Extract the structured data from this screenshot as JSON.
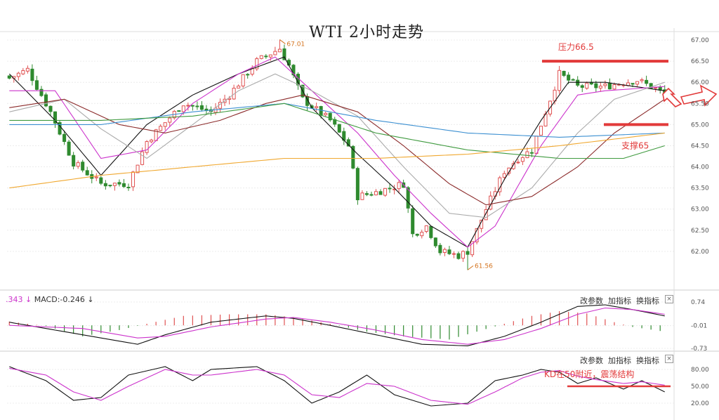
{
  "title": "WTI 2小时走势",
  "macd_header": {
    "left": ".343",
    "label": "MACD:-0.246"
  },
  "buttons": [
    "改参数",
    "加指标",
    "换指标"
  ],
  "close_glyph": "×",
  "main_y_ticks": [
    "67.00",
    "66.50",
    "66.00",
    "65.50",
    "65.00",
    "64.50",
    "64.00",
    "63.50",
    "63.00",
    "62.50",
    "62.00"
  ],
  "macd_y_ticks": [
    "0.74",
    "-0.01",
    "-0.73"
  ],
  "kd_y_ticks": [
    "80.00",
    "50.00",
    "20.00"
  ],
  "annotations": {
    "resistance": "压力66.5",
    "support": "支撑65",
    "kd_note": "KD在50附近，震荡结构",
    "high_price": "67.01",
    "low_price": "61.56"
  },
  "colors": {
    "up": "#e05252",
    "down": "#2f8a2f",
    "annotation": "#e23a3a",
    "k_line": "#111111",
    "d_line": "#cc33cc"
  },
  "chart_data": [
    {
      "type": "candlestick",
      "title": "WTI 2小时走势",
      "ylim": [
        61.3,
        67.2
      ],
      "yticks": [
        67.0,
        66.5,
        66.0,
        65.5,
        65.0,
        64.5,
        64.0,
        63.5,
        63.0,
        62.5,
        62.0
      ],
      "levels": {
        "resistance": 66.5,
        "support": 65.0
      },
      "extremes": {
        "high": 67.01,
        "low": 61.56
      },
      "close_anchors": [
        [
          0,
          66.1
        ],
        [
          4,
          66.3
        ],
        [
          9,
          65.3
        ],
        [
          14,
          64.1
        ],
        [
          20,
          63.6
        ],
        [
          26,
          63.6
        ],
        [
          30,
          64.6
        ],
        [
          38,
          65.5
        ],
        [
          44,
          65.3
        ],
        [
          48,
          65.7
        ],
        [
          54,
          66.5
        ],
        [
          59,
          66.8
        ],
        [
          61,
          66.4
        ],
        [
          64,
          65.6
        ],
        [
          70,
          65.1
        ],
        [
          74,
          64.5
        ],
        [
          76,
          63.3
        ],
        [
          80,
          63.4
        ],
        [
          86,
          63.6
        ],
        [
          88,
          62.4
        ],
        [
          91,
          62.6
        ],
        [
          94,
          62.0
        ],
        [
          98,
          61.9
        ],
        [
          100,
          62.0
        ],
        [
          104,
          63.0
        ],
        [
          108,
          63.9
        ],
        [
          111,
          64.2
        ],
        [
          114,
          64.4
        ],
        [
          116,
          65.0
        ],
        [
          120,
          66.2
        ],
        [
          124,
          65.9
        ],
        [
          130,
          65.9
        ],
        [
          134,
          66.0
        ],
        [
          137,
          66.05
        ],
        [
          141,
          65.85
        ],
        [
          143,
          65.7
        ]
      ],
      "moving_average_anchors": [
        {
          "color": "#111111",
          "points": [
            [
              0,
              66.2
            ],
            [
              10,
              65.1
            ],
            [
              20,
              63.8
            ],
            [
              30,
              65.0
            ],
            [
              40,
              65.7
            ],
            [
              50,
              66.2
            ],
            [
              60,
              66.6
            ],
            [
              66,
              65.4
            ],
            [
              76,
              64.3
            ],
            [
              84,
              63.5
            ],
            [
              92,
              62.6
            ],
            [
              100,
              62.1
            ],
            [
              108,
              63.7
            ],
            [
              116,
              65.1
            ],
            [
              122,
              66.0
            ],
            [
              130,
              66.0
            ],
            [
              143,
              65.8
            ]
          ]
        },
        {
          "color": "#cc33cc",
          "points": [
            [
              0,
              65.8
            ],
            [
              10,
              65.8
            ],
            [
              20,
              64.2
            ],
            [
              30,
              64.4
            ],
            [
              40,
              65.5
            ],
            [
              50,
              66.2
            ],
            [
              58,
              66.6
            ],
            [
              66,
              65.8
            ],
            [
              76,
              64.8
            ],
            [
              84,
              63.8
            ],
            [
              92,
              62.9
            ],
            [
              100,
              62.1
            ],
            [
              106,
              62.6
            ],
            [
              116,
              64.5
            ],
            [
              124,
              65.7
            ],
            [
              130,
              65.8
            ],
            [
              143,
              65.9
            ]
          ]
        },
        {
          "color": "#aaaaaa",
          "points": [
            [
              0,
              65.3
            ],
            [
              12,
              65.6
            ],
            [
              20,
              64.9
            ],
            [
              30,
              64.2
            ],
            [
              40,
              65.0
            ],
            [
              50,
              65.8
            ],
            [
              58,
              66.2
            ],
            [
              66,
              65.8
            ],
            [
              76,
              65.2
            ],
            [
              86,
              64.0
            ],
            [
              96,
              62.9
            ],
            [
              104,
              62.8
            ],
            [
              114,
              63.5
            ],
            [
              124,
              64.8
            ],
            [
              132,
              65.6
            ],
            [
              143,
              66.0
            ]
          ]
        },
        {
          "color": "#8b2a2a",
          "points": [
            [
              0,
              65.4
            ],
            [
              12,
              65.6
            ],
            [
              24,
              65.0
            ],
            [
              34,
              64.8
            ],
            [
              46,
              65.1
            ],
            [
              56,
              65.5
            ],
            [
              64,
              65.7
            ],
            [
              76,
              65.3
            ],
            [
              86,
              64.5
            ],
            [
              96,
              63.6
            ],
            [
              104,
              63.1
            ],
            [
              114,
              63.3
            ],
            [
              124,
              64.0
            ],
            [
              132,
              64.8
            ],
            [
              143,
              65.6
            ]
          ]
        },
        {
          "color": "#3b8fd1",
          "points": [
            [
              0,
              65.0
            ],
            [
              20,
              65.0
            ],
            [
              40,
              65.3
            ],
            [
              60,
              65.5
            ],
            [
              80,
              65.1
            ],
            [
              100,
              64.8
            ],
            [
              120,
              64.7
            ],
            [
              143,
              64.8
            ]
          ]
        },
        {
          "color": "#3f9a3f",
          "points": [
            [
              0,
              65.1
            ],
            [
              20,
              65.1
            ],
            [
              40,
              65.2
            ],
            [
              60,
              65.5
            ],
            [
              80,
              64.8
            ],
            [
              100,
              64.4
            ],
            [
              120,
              64.2
            ],
            [
              134,
              64.2
            ],
            [
              143,
              64.5
            ]
          ]
        },
        {
          "color": "#f0a830",
          "points": [
            [
              0,
              63.5
            ],
            [
              20,
              63.8
            ],
            [
              40,
              64.0
            ],
            [
              60,
              64.2
            ],
            [
              80,
              64.2
            ],
            [
              100,
              64.3
            ],
            [
              120,
              64.5
            ],
            [
              143,
              64.8
            ]
          ]
        }
      ]
    },
    {
      "type": "bar",
      "name": "MACD",
      "label": "MACD:-0.246",
      "ylim": [
        -0.73,
        0.74
      ],
      "yticks": [
        0.74,
        -0.01,
        -0.73
      ],
      "histogram_anchors": [
        [
          0,
          0.12
        ],
        [
          8,
          -0.02
        ],
        [
          16,
          -0.35
        ],
        [
          24,
          -0.15
        ],
        [
          30,
          0.05
        ],
        [
          38,
          0.3
        ],
        [
          48,
          0.35
        ],
        [
          56,
          0.35
        ],
        [
          62,
          0.25
        ],
        [
          70,
          0.05
        ],
        [
          78,
          -0.2
        ],
        [
          86,
          -0.35
        ],
        [
          96,
          -0.45
        ],
        [
          102,
          -0.2
        ],
        [
          108,
          0.05
        ],
        [
          114,
          0.3
        ],
        [
          120,
          0.45
        ],
        [
          126,
          0.38
        ],
        [
          132,
          0.1
        ],
        [
          136,
          -0.05
        ],
        [
          143,
          -0.2
        ]
      ],
      "lines": [
        {
          "color": "#111111",
          "points": [
            [
              0,
              0.1
            ],
            [
              16,
              -0.3
            ],
            [
              28,
              -0.6
            ],
            [
              34,
              -0.3
            ],
            [
              44,
              0.1
            ],
            [
              56,
              0.3
            ],
            [
              62,
              0.22
            ],
            [
              70,
              0.0
            ],
            [
              80,
              -0.3
            ],
            [
              90,
              -0.6
            ],
            [
              100,
              -0.65
            ],
            [
              108,
              -0.35
            ],
            [
              116,
              0.1
            ],
            [
              124,
              0.6
            ],
            [
              130,
              0.65
            ],
            [
              136,
              0.5
            ],
            [
              143,
              0.3
            ]
          ]
        },
        {
          "color": "#cc33cc",
          "points": [
            [
              0,
              0.0
            ],
            [
              16,
              -0.1
            ],
            [
              28,
              -0.4
            ],
            [
              34,
              -0.35
            ],
            [
              44,
              -0.05
            ],
            [
              56,
              0.2
            ],
            [
              62,
              0.25
            ],
            [
              70,
              0.1
            ],
            [
              80,
              -0.15
            ],
            [
              90,
              -0.45
            ],
            [
              100,
              -0.6
            ],
            [
              108,
              -0.45
            ],
            [
              116,
              -0.1
            ],
            [
              124,
              0.35
            ],
            [
              130,
              0.55
            ],
            [
              136,
              0.5
            ],
            [
              143,
              0.35
            ]
          ]
        }
      ]
    },
    {
      "type": "line",
      "name": "KD",
      "ylim": [
        0,
        100
      ],
      "yticks": [
        80,
        50,
        20
      ],
      "reference_level": 50,
      "series": [
        {
          "color": "#111111",
          "points": [
            [
              0,
              85
            ],
            [
              8,
              60
            ],
            [
              14,
              25
            ],
            [
              20,
              30
            ],
            [
              26,
              70
            ],
            [
              34,
              85
            ],
            [
              40,
              60
            ],
            [
              44,
              80
            ],
            [
              54,
              85
            ],
            [
              60,
              60
            ],
            [
              66,
              20
            ],
            [
              72,
              40
            ],
            [
              78,
              70
            ],
            [
              84,
              35
            ],
            [
              92,
              15
            ],
            [
              100,
              20
            ],
            [
              106,
              60
            ],
            [
              112,
              70
            ],
            [
              116,
              80
            ],
            [
              120,
              75
            ],
            [
              124,
              55
            ],
            [
              128,
              65
            ],
            [
              134,
              45
            ],
            [
              138,
              60
            ],
            [
              143,
              40
            ]
          ]
        },
        {
          "color": "#cc33cc",
          "points": [
            [
              0,
              82
            ],
            [
              8,
              70
            ],
            [
              14,
              40
            ],
            [
              20,
              25
            ],
            [
              26,
              50
            ],
            [
              34,
              80
            ],
            [
              40,
              70
            ],
            [
              44,
              70
            ],
            [
              54,
              80
            ],
            [
              60,
              70
            ],
            [
              66,
              35
            ],
            [
              72,
              30
            ],
            [
              78,
              55
            ],
            [
              84,
              50
            ],
            [
              92,
              25
            ],
            [
              100,
              18
            ],
            [
              106,
              40
            ],
            [
              112,
              65
            ],
            [
              116,
              75
            ],
            [
              120,
              78
            ],
            [
              124,
              68
            ],
            [
              128,
              62
            ],
            [
              134,
              55
            ],
            [
              138,
              58
            ],
            [
              143,
              52
            ]
          ]
        }
      ]
    }
  ]
}
